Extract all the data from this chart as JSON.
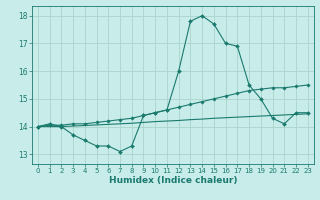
{
  "title": "",
  "xlabel": "Humidex (Indice chaleur)",
  "ylabel": "",
  "bg_color": "#c8ece9",
  "grid_color": "#aad4cc",
  "line_color": "#1a7a6e",
  "xlim": [
    -0.5,
    23.5
  ],
  "ylim": [
    12.65,
    18.35
  ],
  "xticks": [
    0,
    1,
    2,
    3,
    4,
    5,
    6,
    7,
    8,
    9,
    10,
    11,
    12,
    13,
    14,
    15,
    16,
    17,
    18,
    19,
    20,
    21,
    22,
    23
  ],
  "yticks": [
    13,
    14,
    15,
    16,
    17,
    18
  ],
  "line1_x": [
    0,
    1,
    2,
    3,
    4,
    5,
    6,
    7,
    8,
    9,
    10,
    11,
    12,
    13,
    14,
    15,
    16,
    17,
    18,
    19,
    20,
    21,
    22,
    23
  ],
  "line1_y": [
    14.0,
    14.1,
    14.0,
    13.7,
    13.5,
    13.3,
    13.3,
    13.1,
    13.3,
    14.4,
    14.5,
    14.6,
    16.0,
    17.8,
    18.0,
    17.7,
    17.0,
    16.9,
    15.5,
    15.0,
    14.3,
    14.1,
    14.5,
    14.5
  ],
  "line2_x": [
    0,
    1,
    2,
    3,
    4,
    5,
    6,
    7,
    8,
    9,
    10,
    11,
    12,
    13,
    14,
    15,
    16,
    17,
    18,
    19,
    20,
    21,
    22,
    23
  ],
  "line2_y": [
    14.0,
    14.05,
    14.05,
    14.1,
    14.1,
    14.15,
    14.2,
    14.25,
    14.3,
    14.4,
    14.5,
    14.6,
    14.7,
    14.8,
    14.9,
    15.0,
    15.1,
    15.2,
    15.3,
    15.35,
    15.4,
    15.4,
    15.45,
    15.5
  ],
  "line3_x": [
    0,
    1,
    2,
    3,
    4,
    5,
    6,
    7,
    8,
    9,
    10,
    11,
    12,
    13,
    14,
    15,
    16,
    17,
    18,
    19,
    20,
    21,
    22,
    23
  ],
  "line3_y": [
    14.0,
    14.0,
    14.0,
    14.02,
    14.04,
    14.06,
    14.08,
    14.1,
    14.12,
    14.15,
    14.18,
    14.2,
    14.22,
    14.25,
    14.27,
    14.3,
    14.32,
    14.34,
    14.36,
    14.38,
    14.4,
    14.42,
    14.44,
    14.46
  ]
}
